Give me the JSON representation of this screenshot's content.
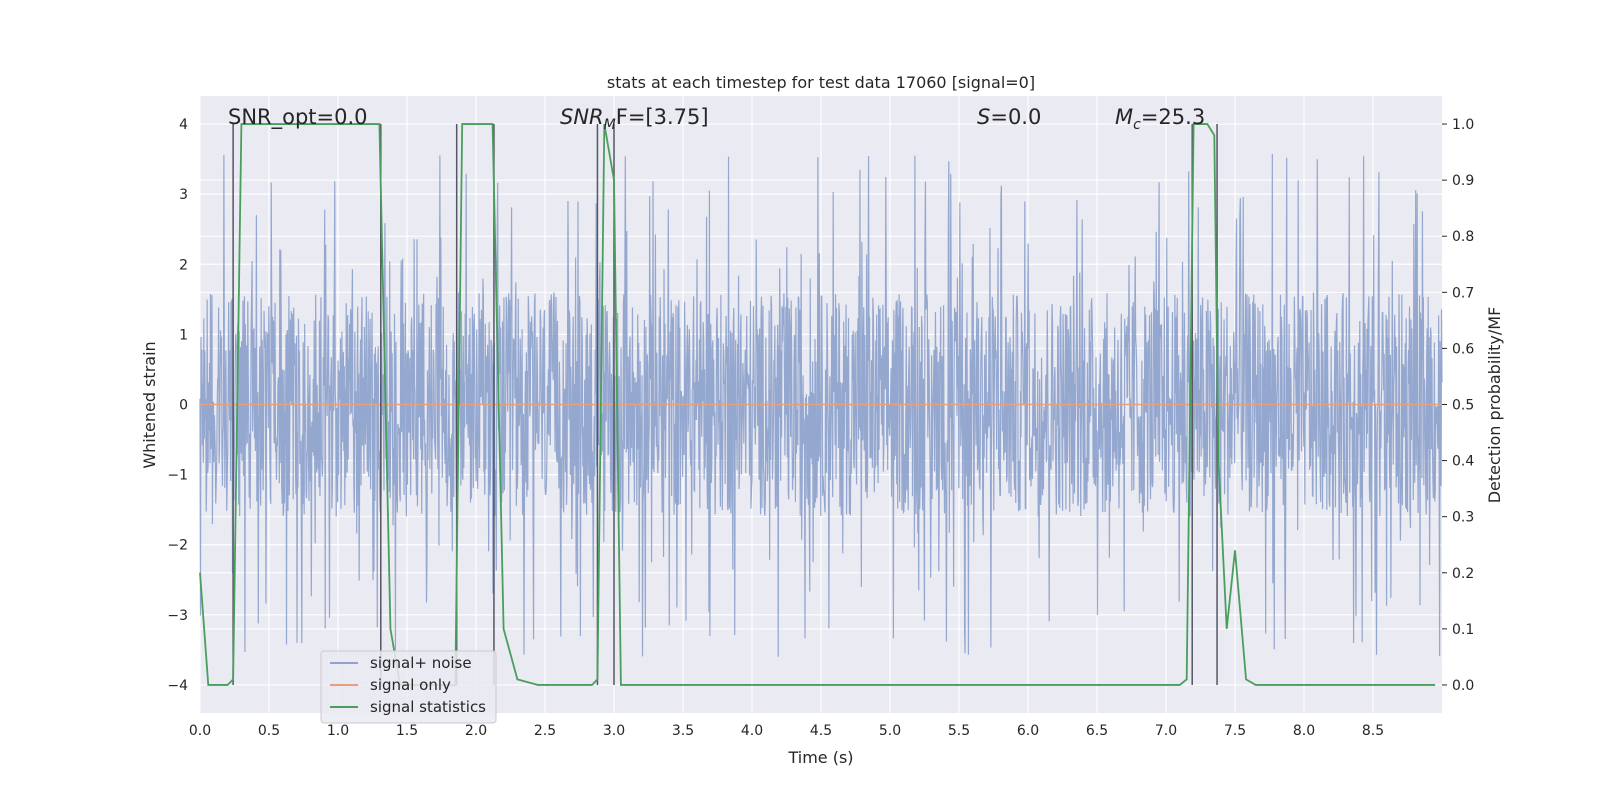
{
  "chart_data": {
    "type": "line",
    "title": "stats at each timestep for test data 17060 [signal=0]",
    "xlabel": "Time (s)",
    "ylabel": "Whitened strain",
    "ylabel_right": "Detection probability/MF",
    "xlim": [
      0.0,
      9.0
    ],
    "ylim": [
      -4.4,
      4.4
    ],
    "ylim_right": [
      -0.05,
      1.05
    ],
    "x_ticks": [
      "0.0",
      "0.5",
      "1.0",
      "1.5",
      "2.0",
      "2.5",
      "3.0",
      "3.5",
      "4.0",
      "4.5",
      "5.0",
      "5.5",
      "6.0",
      "6.5",
      "7.0",
      "7.5",
      "8.0",
      "8.5"
    ],
    "y_ticks": [
      "4",
      "3",
      "2",
      "1",
      "0",
      "−1",
      "−2",
      "−3",
      "−4"
    ],
    "y_ticks_right": [
      "1.0",
      "0.9",
      "0.8",
      "0.7",
      "0.6",
      "0.5",
      "0.4",
      "0.3",
      "0.2",
      "0.1",
      "0.0"
    ],
    "grid": true,
    "legend_position": "lower-left",
    "annotations": {
      "snr_opt": "SNR_opt=0.0",
      "snr_mf_a": "SNR",
      "snr_mf_sub": "M",
      "snr_mf_b": "F=[3.75]",
      "s_a": "S",
      "s_b": "=0.0",
      "mc_a": "M",
      "mc_sub": "c",
      "mc_b": "=25.3"
    },
    "series": [
      {
        "name": "signal+ noise",
        "color": "#8fa3cc",
        "axis": "left",
        "description_values": "noise band approx −1.5 to 1.6 with spikes to ±3.8",
        "envelope_typical": [
          -1.5,
          1.65
        ],
        "envelope_max": [
          -3.8,
          3.75
        ]
      },
      {
        "name": "signal only",
        "color": "#e8a07a",
        "axis": "left",
        "x": [
          0.0,
          9.0
        ],
        "y": [
          0.0,
          0.0
        ]
      },
      {
        "name": "signal statistics",
        "color": "#4a9e5c",
        "axis": "right",
        "x": [
          0.0,
          0.03,
          0.06,
          0.2,
          0.24,
          0.3,
          1.22,
          1.3,
          1.38,
          1.45,
          1.85,
          1.9,
          2.0,
          2.12,
          2.2,
          2.3,
          2.45,
          2.84,
          2.88,
          2.93,
          3.0,
          3.05,
          7.1,
          7.15,
          7.2,
          7.3,
          7.35,
          7.38,
          7.44,
          7.5,
          7.58,
          7.65,
          8.95
        ],
        "y": [
          0.2,
          0.1,
          0.0,
          0.0,
          0.01,
          1.0,
          1.0,
          1.0,
          0.1,
          0.0,
          0.0,
          1.0,
          1.0,
          1.0,
          0.1,
          0.01,
          0.0,
          0.0,
          0.01,
          1.0,
          0.9,
          0.0,
          0.0,
          0.01,
          1.0,
          1.0,
          0.98,
          0.4,
          0.1,
          0.24,
          0.01,
          0.0,
          0.0
        ]
      }
    ],
    "vertical_markers": [
      0.24,
      1.31,
      1.86,
      2.13,
      2.88,
      3.0,
      7.19,
      7.37
    ]
  }
}
